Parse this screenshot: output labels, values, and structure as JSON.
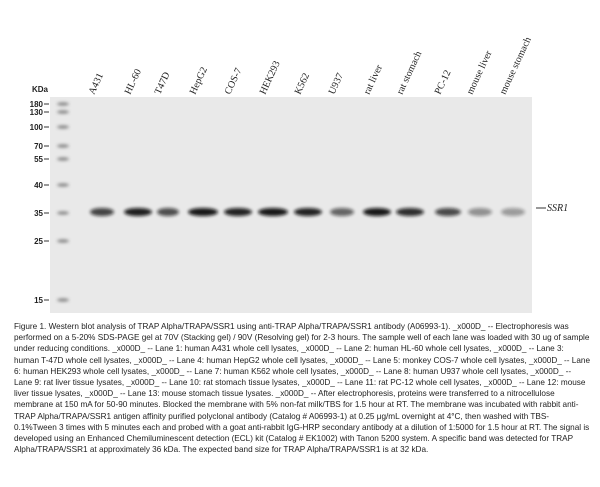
{
  "figure": {
    "unit_label": "KDa",
    "markers": [
      "180",
      "130",
      "100",
      "70",
      "55",
      "40",
      "35",
      "25",
      "15"
    ],
    "lanes": [
      "A431",
      "HL-60",
      "T47D",
      "HepG2",
      "COS-7",
      "HEK293",
      "K562",
      "U937",
      "rat liver",
      "rat stomach",
      "PC-12",
      "mouse liver",
      "mouse stomach"
    ],
    "band_label": "SSR1",
    "caption": "Figure 1. Western blot analysis of TRAP Alpha/TRAPA/SSR1 using anti-TRAP Alpha/TRAPA/SSR1 antibody (A06993-1). _x000D_ -- Electrophoresis was performed on a 5-20% SDS-PAGE gel at 70V (Stacking gel) / 90V (Resolving gel) for 2-3 hours. The sample well of each lane was loaded with 30 ug of sample under reducing conditions. _x000D_ -- Lane 1: human A431 whole cell lysates, _x000D_ -- Lane 2: human HL-60 whole cell lysates, _x000D_ -- Lane 3: human T-47D whole cell lysates, _x000D_ -- Lane 4: human HepG2 whole cell lysates, _x000D_ -- Lane 5: monkey COS-7 whole cell lysates, _x000D_ -- Lane 6: human HEK293 whole cell lysates, _x000D_ -- Lane 7: human K562 whole cell lysates, _x000D_ -- Lane 8: human U937 whole cell lysates, _x000D_ -- Lane 9: rat liver tissue lysates, _x000D_ -- Lane 10: rat stomach tissue lysates, _x000D_ -- Lane 11: rat PC-12 whole cell lysates, _x000D_ -- Lane 12: mouse liver tissue lysates, _x000D_ -- Lane 13: mouse stomach tissue lysates. _x000D_ -- After electrophoresis, proteins were transferred to a nitrocellulose membrane at 150 mA for 50-90 minutes. Blocked the membrane with 5% non-fat milk/TBS for 1.5 hour at RT. The membrane was incubated with rabbit anti-TRAP Alpha/TRAPA/SSR1 antigen affinity purified polyclonal antibody (Catalog # A06993-1) at 0.25 μg/mL overnight at 4°C, then washed with TBS-0.1%Tween 3 times with 5 minutes each and probed with a goat anti-rabbit IgG-HRP secondary antibody at a dilution of 1:5000 for 1.5 hour at RT. The signal is developed using an Enhanced Chemiluminescent detection (ECL) kit (Catalog # EK1002) with Tanon 5200 system. A specific band was detected for TRAP Alpha/TRAPA/SSR1 at approximately 36 kDa. The expected band size for TRAP Alpha/TRAPA/SSR1 is at 32 kDa."
  }
}
